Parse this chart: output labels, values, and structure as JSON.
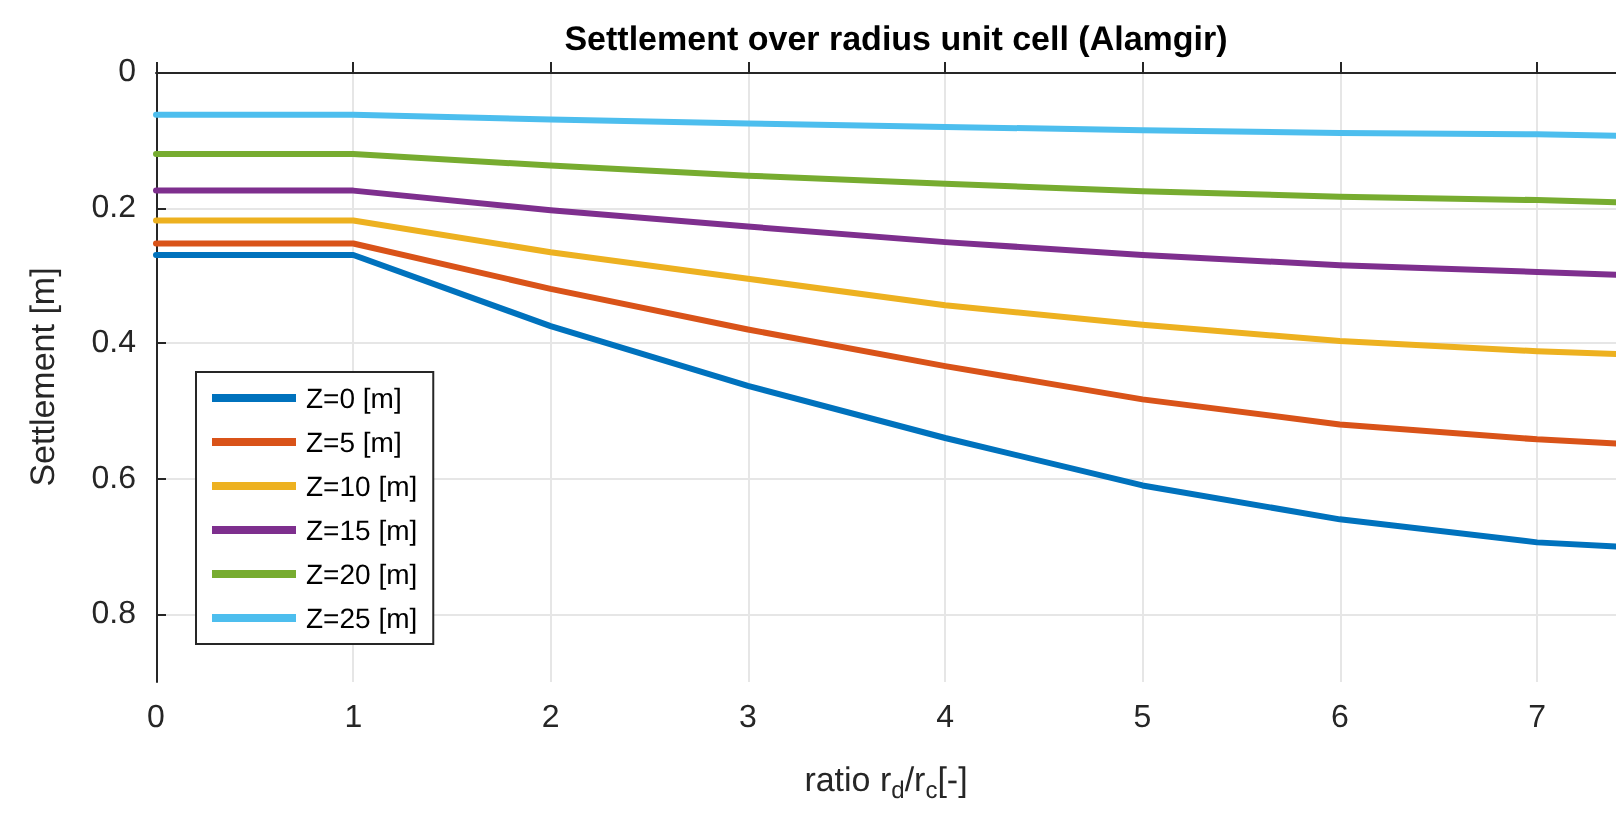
{
  "chart_data": {
    "type": "line",
    "title": "Settlement over radius unit cell (Alamgir)",
    "xlabel": "ratio r$_{d}$/r$_{c}$[-]",
    "ylabel": "Settlement [m]",
    "x": [
      0,
      1,
      2,
      3,
      4,
      5,
      6,
      7,
      7.4
    ],
    "series": [
      {
        "name": "Z=0 [m]",
        "color": "#0072bd",
        "values": [
          0.27,
          0.27,
          0.375,
          0.463,
          0.54,
          0.61,
          0.66,
          0.694,
          0.7
        ]
      },
      {
        "name": "Z=5 [m]",
        "color": "#d95319",
        "values": [
          0.253,
          0.253,
          0.32,
          0.38,
          0.434,
          0.483,
          0.52,
          0.542,
          0.548
        ]
      },
      {
        "name": "Z=10 [m]",
        "color": "#edb120",
        "values": [
          0.219,
          0.219,
          0.266,
          0.305,
          0.344,
          0.373,
          0.397,
          0.412,
          0.416
        ]
      },
      {
        "name": "Z=15 [m]",
        "color": "#7e2f8e",
        "values": [
          0.175,
          0.175,
          0.204,
          0.228,
          0.251,
          0.27,
          0.285,
          0.295,
          0.299
        ]
      },
      {
        "name": "Z=20 [m]",
        "color": "#77ac30",
        "values": [
          0.121,
          0.121,
          0.138,
          0.153,
          0.165,
          0.176,
          0.184,
          0.189,
          0.192
        ]
      },
      {
        "name": "Z=25 [m]",
        "color": "#4dbeee",
        "values": [
          0.063,
          0.063,
          0.07,
          0.076,
          0.081,
          0.086,
          0.09,
          0.092,
          0.094
        ]
      }
    ],
    "xlim": [
      0,
      7.4
    ],
    "xticks": [
      0,
      1,
      2,
      3,
      4,
      5,
      6,
      7
    ],
    "ylim": [
      0.9,
      0
    ],
    "yticks": [
      0,
      0.2,
      0.4,
      0.6,
      0.8
    ],
    "grid": true,
    "legend": "bottom left",
    "marker": "none",
    "line_style": "solid"
  }
}
